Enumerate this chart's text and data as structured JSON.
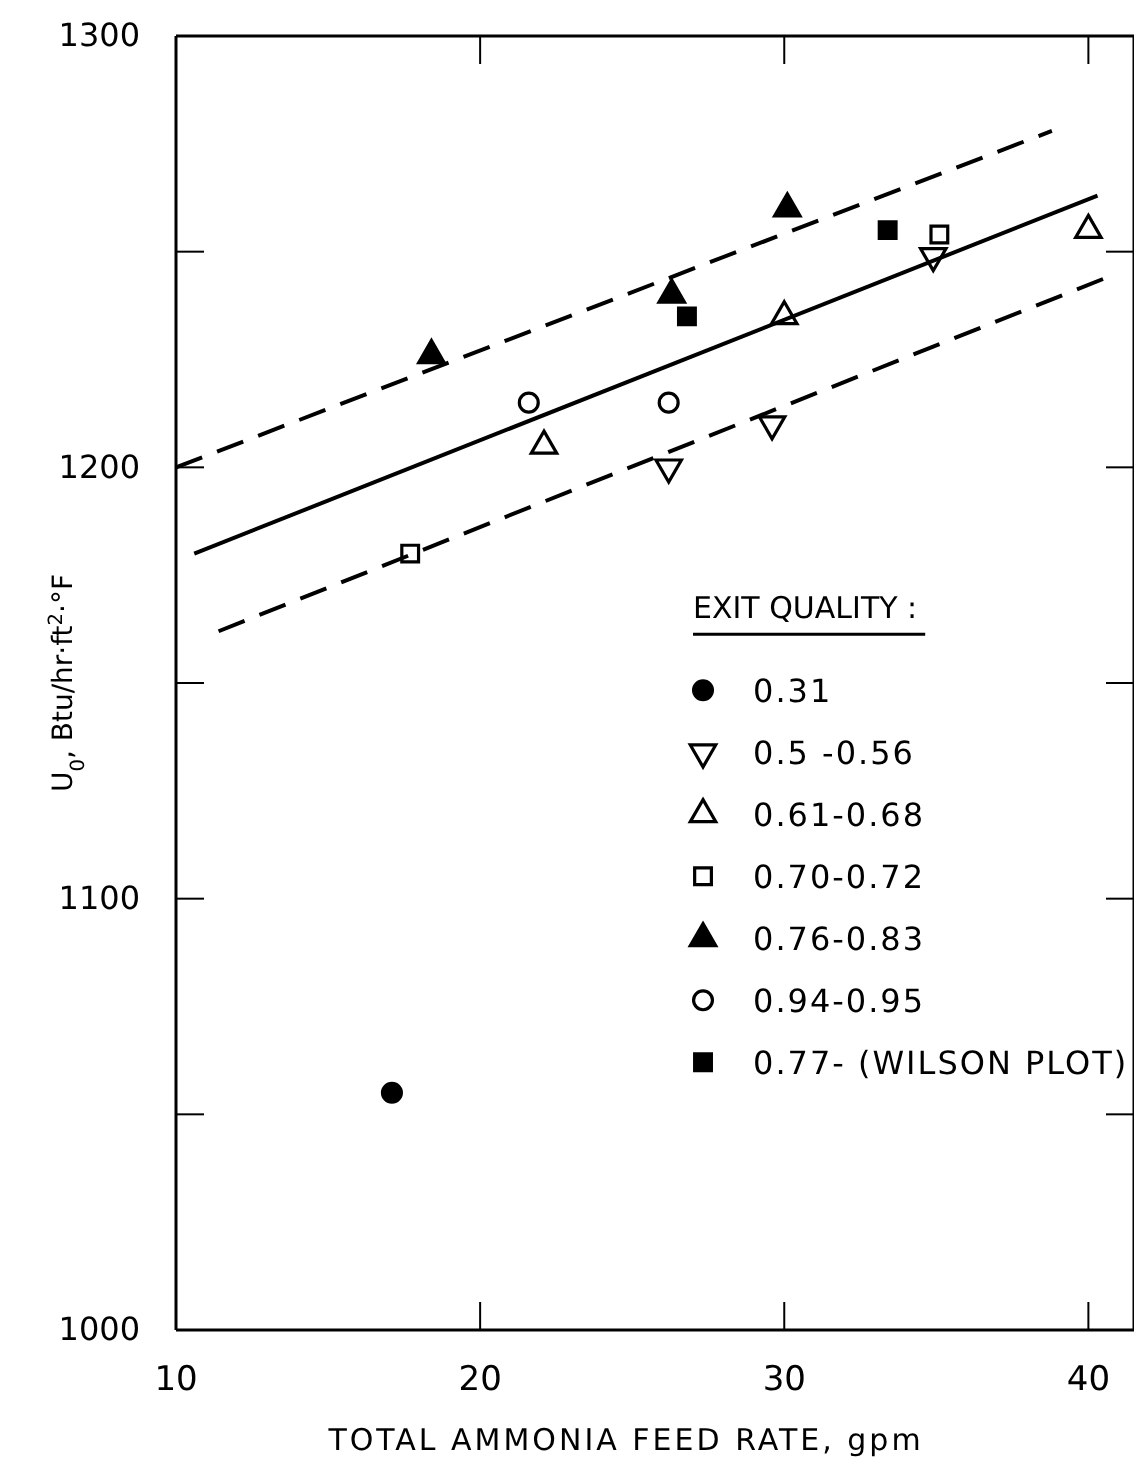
{
  "chart_data": {
    "type": "scatter",
    "xlabel": "TOTAL AMMONIA FEED RATE, gpm",
    "ylabel": "U$_{0}$, Btu/hr·ft$^{2}$·°F",
    "legend_title": "EXIT QUALITY :",
    "xlim": [
      10,
      41.5
    ],
    "ylim": [
      1000,
      1300
    ],
    "xticks": [
      10,
      20,
      30,
      40
    ],
    "yticks": [
      1000,
      {
        "value": 1050,
        "label": null
      },
      1100,
      {
        "value": 1150,
        "label": null
      },
      1200,
      {
        "value": 1250,
        "label": null
      },
      1300
    ],
    "grid": false,
    "legend": "bottom right",
    "series": [
      {
        "name": "0.31",
        "color": "#000000",
        "marker": "circle",
        "x": [
          17.1
        ],
        "values": [
          1055
        ]
      },
      {
        "name": "0.5 -0.56",
        "color": "#000000",
        "marker": "triangle-down-open",
        "x": [
          26.2,
          29.6,
          34.9
        ],
        "values": [
          1200,
          1210,
          1249
        ]
      },
      {
        "name": "0.61-0.68",
        "color": "#000000",
        "marker": "triangle-open",
        "x": [
          22.1,
          30.0,
          40.0
        ],
        "values": [
          1205,
          1235,
          1255
        ]
      },
      {
        "name": "0.70-0.72",
        "color": "#000000",
        "marker": "square-open",
        "x": [
          17.7,
          35.1
        ],
        "values": [
          1180,
          1254
        ]
      },
      {
        "name": "0.76-0.83",
        "color": "#000000",
        "marker": "triangle",
        "x": [
          18.4,
          26.3,
          30.1
        ],
        "values": [
          1226,
          1240,
          1260
        ]
      },
      {
        "name": "0.94-0.95",
        "color": "#000000",
        "marker": "circle-open",
        "x": [
          21.6,
          26.2
        ],
        "values": [
          1215,
          1215
        ]
      },
      {
        "name": "0.77- (WILSON PLOT)",
        "color": "#000000",
        "marker": "square",
        "x": [
          26.8,
          33.4
        ],
        "values": [
          1235,
          1255
        ]
      },
      {
        "type": "line",
        "color": "#000000",
        "line_style": "solid",
        "x": [
          10.6,
          40.3
        ],
        "values": [
          1180,
          1263
        ]
      },
      {
        "type": "line",
        "color": "#000000",
        "line_style": "dashed",
        "x": [
          10,
          38.8
        ],
        "values": [
          1200,
          1278
        ]
      },
      {
        "type": "line",
        "color": "#000000",
        "line_style": "dashed",
        "x": [
          11.4,
          40.6
        ],
        "values": [
          1162,
          1244
        ]
      }
    ]
  }
}
